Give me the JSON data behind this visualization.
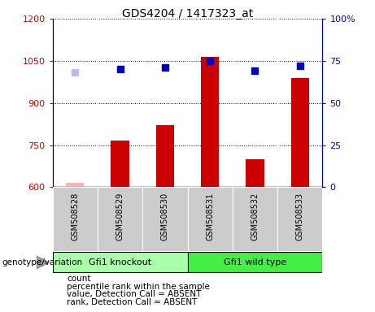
{
  "title": "GDS4204 / 1417323_at",
  "samples": [
    "GSM508528",
    "GSM508529",
    "GSM508530",
    "GSM508531",
    "GSM508532",
    "GSM508533"
  ],
  "bar_values": [
    617,
    765,
    820,
    1063,
    700,
    990
  ],
  "bar_colors": [
    "#ffb0b0",
    "#cc0000",
    "#cc0000",
    "#cc0000",
    "#cc0000",
    "#cc0000"
  ],
  "rank_values": [
    68,
    70,
    71,
    75,
    69,
    72
  ],
  "rank_colors": [
    "#bbbbee",
    "#0000cc",
    "#0000cc",
    "#0000cc",
    "#0000cc",
    "#0000cc"
  ],
  "absent_flags": [
    true,
    false,
    false,
    false,
    false,
    false
  ],
  "ylim_left": [
    600,
    1200
  ],
  "ylim_right": [
    0,
    100
  ],
  "yticks_left": [
    600,
    750,
    900,
    1050,
    1200
  ],
  "yticks_right": [
    0,
    25,
    50,
    75,
    100
  ],
  "ytick_labels_right": [
    "0",
    "25",
    "50",
    "75",
    "100%"
  ],
  "groups": [
    {
      "label": "Gfi1 knockout",
      "range": [
        0,
        3
      ]
    },
    {
      "label": "Gfi1 wild type",
      "range": [
        3,
        6
      ]
    }
  ],
  "group_color_light": "#aaffaa",
  "group_color_dark": "#44ee44",
  "genotype_label": "genotype/variation",
  "legend_items": [
    {
      "label": "count",
      "color": "#cc0000"
    },
    {
      "label": "percentile rank within the sample",
      "color": "#0000cc"
    },
    {
      "label": "value, Detection Call = ABSENT",
      "color": "#ffb0b0"
    },
    {
      "label": "rank, Detection Call = ABSENT",
      "color": "#bbbbee"
    }
  ],
  "background_color": "#ffffff",
  "plot_bg_color": "#ffffff",
  "sample_label_bg": "#cccccc",
  "tick_color_left": "#cc0000",
  "tick_color_right": "#0000cc",
  "grid_color": "#000000",
  "bar_width": 0.4
}
